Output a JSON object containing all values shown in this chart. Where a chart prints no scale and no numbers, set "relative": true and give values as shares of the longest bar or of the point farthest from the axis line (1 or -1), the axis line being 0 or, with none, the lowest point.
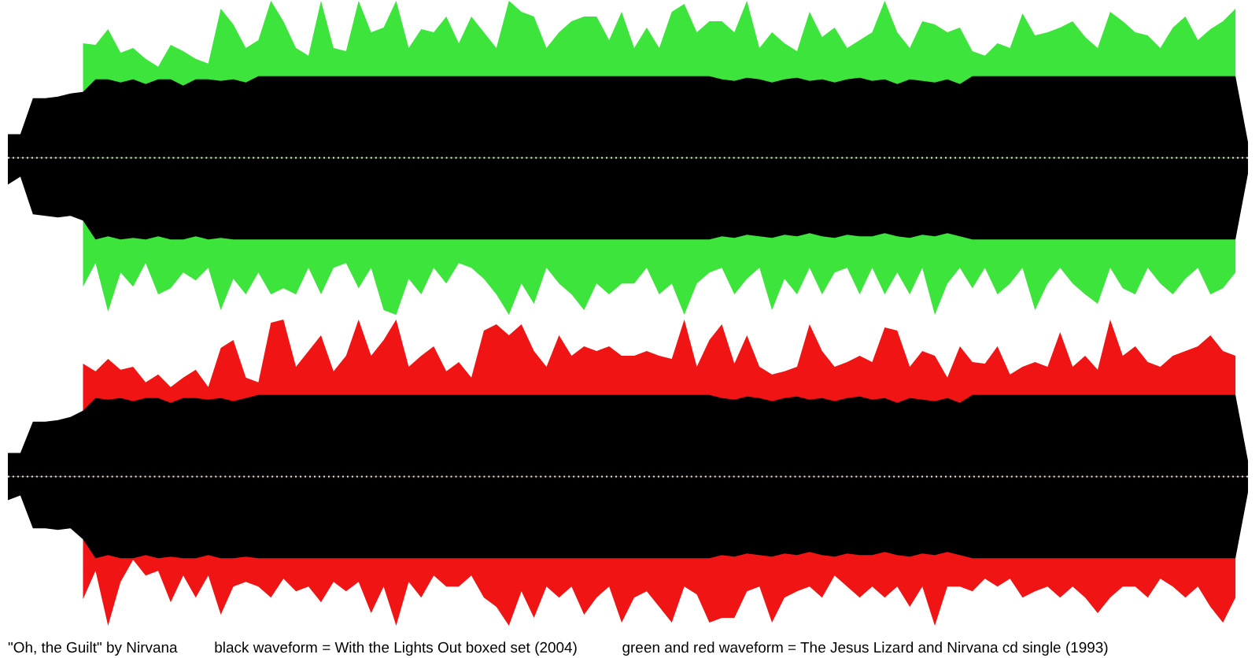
{
  "chart_data": [
    {
      "type": "area",
      "relative": true,
      "categories": [
        null,
        null,
        null,
        null,
        null,
        null,
        null,
        null,
        null,
        null,
        null,
        null,
        null,
        null,
        null,
        null,
        null,
        null,
        null,
        null,
        null,
        null,
        null,
        null,
        null,
        null,
        null,
        null,
        null,
        null,
        null,
        null,
        null,
        null,
        null,
        null,
        null,
        null,
        null,
        null,
        null,
        null,
        null,
        null,
        null,
        null,
        null,
        null,
        null,
        null,
        null,
        null,
        null,
        null,
        null,
        null,
        null,
        null,
        null,
        null,
        null,
        null,
        null,
        null,
        null,
        null,
        null,
        null,
        null,
        null,
        null,
        null,
        null,
        null,
        null,
        null,
        null,
        null,
        null,
        null,
        null,
        null,
        null,
        null,
        null,
        null,
        null,
        null,
        null,
        null,
        null,
        null,
        null,
        null,
        null,
        null,
        null,
        null,
        null,
        null
      ],
      "series": [
        {
          "color": "#3ce43c",
          "values": [
            null,
            null,
            null,
            null,
            null,
            null,
            0.73,
            0.72,
            0.82,
            0.67,
            0.7,
            0.63,
            0.58,
            0.72,
            0.68,
            0.63,
            0.6,
            0.95,
            0.85,
            0.7,
            0.75,
            1.0,
            0.87,
            0.7,
            0.65,
            1.0,
            0.7,
            0.68,
            1.0,
            0.8,
            0.83,
            1.0,
            0.7,
            0.82,
            0.8,
            0.9,
            0.73,
            0.9,
            0.8,
            0.7,
            1.0,
            0.93,
            0.9,
            0.7,
            0.8,
            0.87,
            0.9,
            0.9,
            0.75,
            0.93,
            0.7,
            0.83,
            0.7,
            0.93,
            0.98,
            0.8,
            0.87,
            0.87,
            0.8,
            1.0,
            0.7,
            0.8,
            0.73,
            0.68,
            0.93,
            0.77,
            0.83,
            0.7,
            0.75,
            0.8,
            1.0,
            0.8,
            0.7,
            0.87,
            0.85,
            0.8,
            0.83,
            0.68,
            0.65,
            0.73,
            0.7,
            0.92,
            0.78,
            0.8,
            0.83,
            0.87,
            0.77,
            0.7,
            0.93,
            0.87,
            0.8,
            0.78,
            0.7,
            0.83,
            0.9,
            0.75,
            0.82,
            0.87,
            0.95,
            null
          ]
        },
        {
          "color": "#3ce43c",
          "values": [
            null,
            null,
            null,
            null,
            null,
            null,
            -0.82,
            -0.67,
            -0.98,
            -0.73,
            -0.82,
            -0.67,
            -0.87,
            -0.83,
            -0.73,
            -0.78,
            -0.7,
            -0.97,
            -0.77,
            -0.87,
            -0.73,
            -0.87,
            -0.83,
            -0.87,
            -0.7,
            -0.87,
            -0.7,
            -0.67,
            -0.83,
            -0.7,
            -0.97,
            -1.0,
            -0.77,
            -0.87,
            -0.7,
            -0.8,
            -0.67,
            -0.7,
            -0.77,
            -0.87,
            -1.0,
            -0.8,
            -0.93,
            -0.7,
            -0.8,
            -0.87,
            -0.97,
            -0.8,
            -0.87,
            -0.8,
            -0.8,
            -0.7,
            -0.87,
            -0.8,
            -1.0,
            -0.8,
            -0.73,
            -0.7,
            -0.87,
            -0.77,
            -0.7,
            -0.97,
            -0.77,
            -0.87,
            -0.7,
            -0.87,
            -0.73,
            -0.7,
            -0.87,
            -0.7,
            -0.87,
            -0.73,
            -0.87,
            -0.7,
            -1.0,
            -0.8,
            -0.7,
            -0.83,
            -0.7,
            -0.87,
            -0.8,
            -0.7,
            -0.97,
            -0.8,
            -0.7,
            -0.8,
            -0.87,
            -0.93,
            -0.7,
            -0.83,
            -0.87,
            -0.7,
            -0.8,
            -0.87,
            -0.77,
            -0.7,
            -0.87,
            -0.83,
            -0.73,
            null
          ]
        },
        {
          "color": "#000000",
          "values": [
            0.15,
            0.15,
            0.38,
            0.38,
            0.39,
            0.41,
            0.42,
            0.5,
            0.5,
            0.48,
            0.5,
            0.47,
            0.5,
            0.5,
            0.46,
            0.5,
            0.5,
            0.49,
            0.5,
            0.48,
            0.52,
            0.52,
            0.52,
            0.52,
            0.52,
            0.52,
            0.52,
            0.52,
            0.52,
            0.52,
            0.52,
            0.52,
            0.52,
            0.52,
            0.52,
            0.52,
            0.52,
            0.52,
            0.52,
            0.52,
            0.52,
            0.52,
            0.52,
            0.52,
            0.52,
            0.52,
            0.52,
            0.52,
            0.52,
            0.52,
            0.52,
            0.52,
            0.52,
            0.52,
            0.52,
            0.52,
            0.52,
            0.5,
            0.49,
            0.51,
            0.5,
            0.48,
            0.5,
            0.51,
            0.49,
            0.5,
            0.48,
            0.5,
            0.51,
            0.49,
            0.5,
            0.47,
            0.5,
            0.49,
            0.48,
            0.5,
            0.47,
            0.52,
            0.52,
            0.52,
            0.52,
            0.52,
            0.52,
            0.52,
            0.52,
            0.52,
            0.52,
            0.52,
            0.52,
            0.52,
            0.52,
            0.52,
            0.52,
            0.52,
            0.52,
            0.52,
            0.52,
            0.52,
            0.52,
            0.1
          ]
        },
        {
          "color": "#000000",
          "values": [
            -0.17,
            -0.12,
            -0.36,
            -0.37,
            -0.38,
            -0.37,
            -0.4,
            -0.52,
            -0.5,
            -0.52,
            -0.51,
            -0.52,
            -0.5,
            -0.52,
            -0.52,
            -0.5,
            -0.52,
            -0.51,
            -0.52,
            -0.52,
            -0.52,
            -0.52,
            -0.52,
            -0.52,
            -0.52,
            -0.52,
            -0.52,
            -0.52,
            -0.52,
            -0.52,
            -0.52,
            -0.52,
            -0.52,
            -0.52,
            -0.52,
            -0.52,
            -0.52,
            -0.52,
            -0.52,
            -0.52,
            -0.52,
            -0.52,
            -0.52,
            -0.52,
            -0.52,
            -0.52,
            -0.52,
            -0.52,
            -0.52,
            -0.52,
            -0.52,
            -0.52,
            -0.52,
            -0.52,
            -0.52,
            -0.52,
            -0.52,
            -0.5,
            -0.51,
            -0.49,
            -0.5,
            -0.51,
            -0.49,
            -0.5,
            -0.48,
            -0.5,
            -0.51,
            -0.49,
            -0.5,
            -0.5,
            -0.48,
            -0.5,
            -0.51,
            -0.49,
            -0.5,
            -0.48,
            -0.5,
            -0.52,
            -0.52,
            -0.52,
            -0.52,
            -0.52,
            -0.52,
            -0.52,
            -0.52,
            -0.52,
            -0.52,
            -0.52,
            -0.52,
            -0.52,
            -0.52,
            -0.52,
            -0.52,
            -0.52,
            -0.52,
            -0.52,
            -0.52,
            -0.52,
            -0.52,
            -0.1
          ]
        }
      ],
      "ref_lines": [
        {
          "axis": "y",
          "value": 0,
          "color": "#f4f4dc",
          "line_style": "dotted"
        }
      ]
    },
    {
      "type": "area",
      "relative": true,
      "categories": [
        null,
        null,
        null,
        null,
        null,
        null,
        null,
        null,
        null,
        null,
        null,
        null,
        null,
        null,
        null,
        null,
        null,
        null,
        null,
        null,
        null,
        null,
        null,
        null,
        null,
        null,
        null,
        null,
        null,
        null,
        null,
        null,
        null,
        null,
        null,
        null,
        null,
        null,
        null,
        null,
        null,
        null,
        null,
        null,
        null,
        null,
        null,
        null,
        null,
        null,
        null,
        null,
        null,
        null,
        null,
        null,
        null,
        null,
        null,
        null,
        null,
        null,
        null,
        null,
        null,
        null,
        null,
        null,
        null,
        null,
        null,
        null,
        null,
        null,
        null,
        null,
        null,
        null,
        null,
        null,
        null,
        null,
        null,
        null,
        null,
        null,
        null,
        null,
        null,
        null,
        null,
        null,
        null,
        null,
        null,
        null,
        null,
        null,
        null,
        null
      ],
      "series": [
        {
          "color": "#f01414",
          "values": [
            null,
            null,
            null,
            null,
            null,
            null,
            0.72,
            0.67,
            0.75,
            0.68,
            0.7,
            0.6,
            0.65,
            0.57,
            0.63,
            0.68,
            0.57,
            0.82,
            0.87,
            0.63,
            0.6,
            0.98,
            1.0,
            0.7,
            0.8,
            0.9,
            0.67,
            0.77,
            1.0,
            0.77,
            0.87,
            1.0,
            0.7,
            0.77,
            0.83,
            0.67,
            0.73,
            0.63,
            0.93,
            0.97,
            0.9,
            0.97,
            0.8,
            0.7,
            0.9,
            0.77,
            0.83,
            0.8,
            0.83,
            0.77,
            0.77,
            0.8,
            0.77,
            0.75,
            1.0,
            0.7,
            0.87,
            0.97,
            0.72,
            0.9,
            0.7,
            0.65,
            0.67,
            0.7,
            0.97,
            0.8,
            0.7,
            0.73,
            0.77,
            0.73,
            0.95,
            0.93,
            0.7,
            0.8,
            0.77,
            0.63,
            0.83,
            0.73,
            0.72,
            0.83,
            0.65,
            0.7,
            0.73,
            0.7,
            0.92,
            0.7,
            0.77,
            0.68,
            1.0,
            0.77,
            0.83,
            0.73,
            0.7,
            0.77,
            0.8,
            0.83,
            0.9,
            0.8,
            0.77,
            null
          ]
        },
        {
          "color": "#f01414",
          "values": [
            null,
            null,
            null,
            null,
            null,
            null,
            -0.78,
            -0.6,
            -0.95,
            -0.67,
            -0.53,
            -0.63,
            -0.6,
            -0.8,
            -0.63,
            -0.77,
            -0.63,
            -0.88,
            -0.7,
            -0.67,
            -0.7,
            -0.77,
            -0.65,
            -0.73,
            -0.7,
            -0.8,
            -0.67,
            -0.73,
            -0.67,
            -0.87,
            -0.7,
            -0.95,
            -0.67,
            -0.77,
            -0.63,
            -0.7,
            -0.7,
            -0.63,
            -0.77,
            -0.83,
            -0.95,
            -0.73,
            -0.9,
            -0.7,
            -0.77,
            -0.7,
            -0.88,
            -0.77,
            -0.7,
            -0.93,
            -0.77,
            -0.73,
            -0.83,
            -0.93,
            -0.7,
            -0.75,
            -0.93,
            -0.9,
            -0.9,
            -0.73,
            -0.7,
            -0.93,
            -0.77,
            -0.73,
            -0.7,
            -0.77,
            -0.63,
            -0.7,
            -0.77,
            -0.7,
            -0.77,
            -0.7,
            -0.83,
            -0.7,
            -0.95,
            -0.7,
            -0.7,
            -0.73,
            -0.65,
            -0.7,
            -0.65,
            -0.77,
            -0.73,
            -0.7,
            -0.77,
            -0.7,
            -0.77,
            -0.87,
            -0.77,
            -0.7,
            -0.7,
            -0.77,
            -0.65,
            -0.7,
            -0.77,
            -0.7,
            -0.83,
            -0.93,
            -0.77,
            null
          ]
        },
        {
          "color": "#000000",
          "values": [
            0.15,
            0.15,
            0.35,
            0.35,
            0.36,
            0.38,
            0.42,
            0.5,
            0.49,
            0.5,
            0.48,
            0.5,
            0.5,
            0.47,
            0.5,
            0.5,
            0.49,
            0.5,
            0.48,
            0.5,
            0.52,
            0.52,
            0.52,
            0.52,
            0.52,
            0.52,
            0.52,
            0.52,
            0.52,
            0.52,
            0.52,
            0.52,
            0.52,
            0.52,
            0.52,
            0.52,
            0.52,
            0.52,
            0.52,
            0.52,
            0.52,
            0.52,
            0.52,
            0.52,
            0.52,
            0.52,
            0.52,
            0.52,
            0.52,
            0.52,
            0.52,
            0.52,
            0.52,
            0.52,
            0.52,
            0.52,
            0.52,
            0.5,
            0.49,
            0.51,
            0.5,
            0.48,
            0.5,
            0.51,
            0.49,
            0.5,
            0.48,
            0.5,
            0.51,
            0.49,
            0.5,
            0.47,
            0.5,
            0.49,
            0.48,
            0.5,
            0.47,
            0.52,
            0.52,
            0.52,
            0.52,
            0.52,
            0.52,
            0.52,
            0.52,
            0.52,
            0.52,
            0.52,
            0.52,
            0.52,
            0.52,
            0.52,
            0.52,
            0.52,
            0.52,
            0.52,
            0.52,
            0.52,
            0.52,
            0.1
          ]
        },
        {
          "color": "#000000",
          "values": [
            -0.15,
            -0.12,
            -0.33,
            -0.33,
            -0.34,
            -0.33,
            -0.4,
            -0.52,
            -0.5,
            -0.52,
            -0.52,
            -0.5,
            -0.52,
            -0.51,
            -0.52,
            -0.52,
            -0.5,
            -0.52,
            -0.52,
            -0.51,
            -0.52,
            -0.52,
            -0.52,
            -0.52,
            -0.52,
            -0.52,
            -0.52,
            -0.52,
            -0.52,
            -0.52,
            -0.52,
            -0.52,
            -0.52,
            -0.52,
            -0.52,
            -0.52,
            -0.52,
            -0.52,
            -0.52,
            -0.52,
            -0.52,
            -0.52,
            -0.52,
            -0.52,
            -0.52,
            -0.52,
            -0.52,
            -0.52,
            -0.52,
            -0.52,
            -0.52,
            -0.52,
            -0.52,
            -0.52,
            -0.52,
            -0.52,
            -0.52,
            -0.5,
            -0.51,
            -0.49,
            -0.5,
            -0.51,
            -0.49,
            -0.5,
            -0.48,
            -0.5,
            -0.51,
            -0.49,
            -0.5,
            -0.5,
            -0.48,
            -0.5,
            -0.51,
            -0.49,
            -0.5,
            -0.48,
            -0.5,
            -0.52,
            -0.52,
            -0.52,
            -0.52,
            -0.52,
            -0.52,
            -0.52,
            -0.52,
            -0.52,
            -0.52,
            -0.52,
            -0.52,
            -0.52,
            -0.52,
            -0.52,
            -0.52,
            -0.52,
            -0.52,
            -0.52,
            -0.52,
            -0.52,
            -0.52,
            -0.1
          ]
        }
      ],
      "ref_lines": [
        {
          "axis": "y",
          "value": 0,
          "color": "#f8e4dc",
          "line_style": "dotted"
        }
      ],
      "annotations": [
        "\"Oh, the Guilt\" by Nirvana",
        "black waveform = With the Lights Out boxed set (2004)",
        "green and red waveform = The Jesus Lizard and Nirvana cd single (1993)"
      ]
    }
  ]
}
